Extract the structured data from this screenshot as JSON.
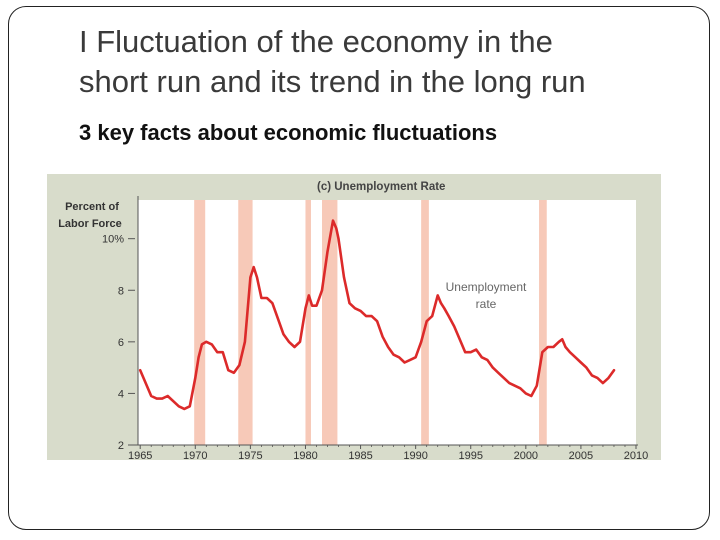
{
  "slide": {
    "title_line1": "I Fluctuation of the economy in the",
    "title_line2": "short run and its trend in the long run",
    "subtitle": "3 key facts about economic fluctuations"
  },
  "colors": {
    "panel_bg": "#d8dccb",
    "plot_bg": "#ffffff",
    "recession": "#f7c9b8",
    "line": "#dc2a2a",
    "axis": "#555555"
  },
  "chart_data": {
    "type": "line",
    "title": "(c) Unemployment Rate",
    "ylabel": "Percent of Labor Force",
    "ylabel_lines": [
      "Percent of",
      "Labor Force"
    ],
    "xlim": [
      1964.8,
      2010
    ],
    "ylim": [
      2,
      11.5
    ],
    "x_ticks": [
      1965,
      1970,
      1975,
      1980,
      1985,
      1990,
      1995,
      2000,
      2005,
      2010
    ],
    "x_tick_labels": [
      "1965",
      "1970",
      "1975",
      "1980",
      "1985",
      "1990",
      "1995",
      "2000",
      "2005",
      "2010"
    ],
    "y_ticks": [
      2,
      4,
      6,
      8,
      10
    ],
    "y_tick_labels": [
      "2",
      "4",
      "6",
      "8",
      "10%"
    ],
    "recessions": [
      [
        1969.9,
        1970.9
      ],
      [
        1973.9,
        1975.2
      ],
      [
        1980.0,
        1980.5
      ],
      [
        1981.5,
        1982.9
      ],
      [
        1990.5,
        1991.2
      ],
      [
        2001.2,
        2001.9
      ]
    ],
    "series": [
      {
        "name": "Unemployment rate",
        "label_lines": [
          "Unemployment",
          "rate"
        ],
        "x": [
          1965,
          1965.5,
          1966,
          1966.5,
          1967,
          1967.5,
          1968,
          1968.5,
          1969,
          1969.5,
          1970,
          1970.3,
          1970.6,
          1971,
          1971.5,
          1972,
          1972.5,
          1973,
          1973.5,
          1974,
          1974.5,
          1975,
          1975.3,
          1975.6,
          1976,
          1976.5,
          1977,
          1977.5,
          1978,
          1978.5,
          1979,
          1979.5,
          1980,
          1980.3,
          1980.6,
          1981,
          1981.5,
          1982,
          1982.5,
          1982.8,
          1983,
          1983.5,
          1984,
          1984.5,
          1985,
          1985.5,
          1986,
          1986.5,
          1987,
          1987.5,
          1988,
          1988.5,
          1989,
          1989.5,
          1990,
          1990.5,
          1991,
          1991.5,
          1992,
          1992.3,
          1992.6,
          1993,
          1993.5,
          1994,
          1994.5,
          1995,
          1995.5,
          1996,
          1996.5,
          1997,
          1997.5,
          1998,
          1998.5,
          1999,
          1999.5,
          2000,
          2000.5,
          2001,
          2001.5,
          2002,
          2002.5,
          2003,
          2003.3,
          2003.6,
          2004,
          2004.5,
          2005,
          2005.5,
          2006,
          2006.5,
          2007,
          2007.5,
          2008
        ],
        "values": [
          4.9,
          4.4,
          3.9,
          3.8,
          3.8,
          3.9,
          3.7,
          3.5,
          3.4,
          3.5,
          4.6,
          5.4,
          5.9,
          6.0,
          5.9,
          5.6,
          5.6,
          4.9,
          4.8,
          5.1,
          6.0,
          8.5,
          8.9,
          8.5,
          7.7,
          7.7,
          7.5,
          6.9,
          6.3,
          6.0,
          5.8,
          6.0,
          7.3,
          7.8,
          7.4,
          7.4,
          8.0,
          9.5,
          10.7,
          10.4,
          10.0,
          8.5,
          7.5,
          7.3,
          7.2,
          7.0,
          7.0,
          6.8,
          6.2,
          5.8,
          5.5,
          5.4,
          5.2,
          5.3,
          5.4,
          6.0,
          6.8,
          7.0,
          7.8,
          7.5,
          7.3,
          7.0,
          6.6,
          6.1,
          5.6,
          5.6,
          5.7,
          5.4,
          5.3,
          5.0,
          4.8,
          4.6,
          4.4,
          4.3,
          4.2,
          4.0,
          3.9,
          4.3,
          5.6,
          5.8,
          5.8,
          6.0,
          6.1,
          5.8,
          5.6,
          5.4,
          5.2,
          5.0,
          4.7,
          4.6,
          4.4,
          4.6,
          4.9
        ]
      }
    ]
  }
}
